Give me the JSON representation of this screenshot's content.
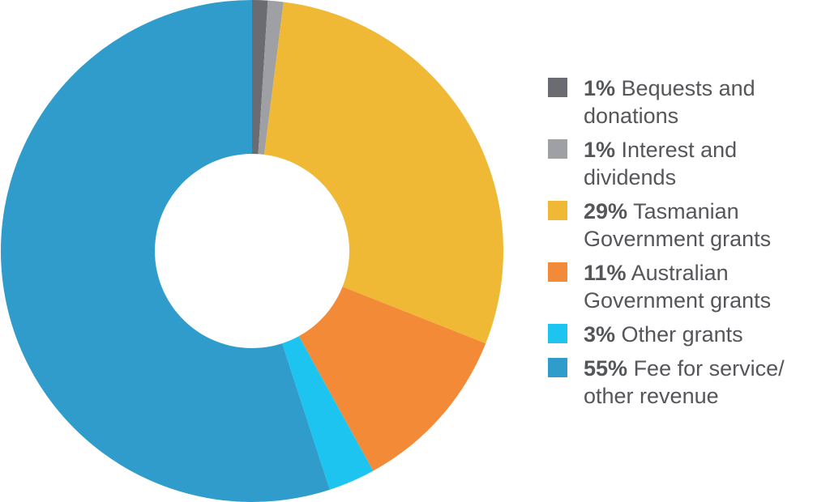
{
  "chart_data": {
    "type": "donut",
    "categories": [
      "Bequests and donations",
      "Interest and dividends",
      "Tasmanian Government grants",
      "Australian Government grants",
      "Other grants",
      "Fee for service/ other revenue"
    ],
    "values": [
      1,
      1,
      29,
      11,
      3,
      55
    ],
    "value_labels": [
      "1%",
      "1%",
      "29%",
      "11%",
      "3%",
      "55%"
    ],
    "colors": [
      "#6b6b72",
      "#9ea0a3",
      "#f0b935",
      "#f28a37",
      "#1dc4ef",
      "#2f9ccc"
    ]
  }
}
